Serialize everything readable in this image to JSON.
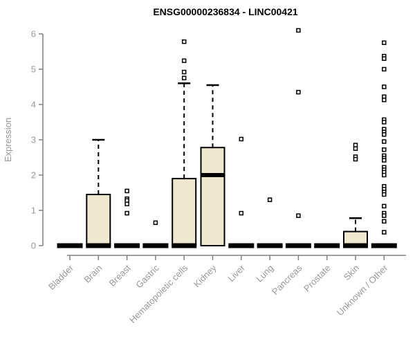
{
  "chart_data": {
    "type": "boxplot",
    "title": "ENSG00000236834 - LINC00421",
    "xlabel": "",
    "ylabel": "Expression",
    "ylim": [
      0,
      6
    ],
    "yticks": [
      0,
      1,
      2,
      3,
      4,
      5,
      6
    ],
    "grid": false,
    "legend": "none",
    "categories": [
      "Bladder",
      "Brain",
      "Breast",
      "Gastric",
      "Hematopoietic cells",
      "Kidney",
      "Liver",
      "Lung",
      "Pancreas",
      "Prostate",
      "Skin",
      "Unknown / Other"
    ],
    "series": [
      {
        "category": "Bladder",
        "q1": 0,
        "median": 0,
        "q3": 0,
        "whisker_low": 0,
        "whisker_high": 0,
        "outliers": []
      },
      {
        "category": "Brain",
        "q1": 0,
        "median": 0,
        "q3": 1.45,
        "whisker_low": 0,
        "whisker_high": 3.0,
        "outliers": []
      },
      {
        "category": "Breast",
        "q1": 0,
        "median": 0,
        "q3": 0,
        "whisker_low": 0,
        "whisker_high": 0,
        "outliers": [
          1.55,
          1.33,
          1.28,
          1.18,
          0.92
        ]
      },
      {
        "category": "Gastric",
        "q1": 0,
        "median": 0,
        "q3": 0,
        "whisker_low": 0,
        "whisker_high": 0,
        "outliers": [
          0.65
        ]
      },
      {
        "category": "Hematopoietic cells",
        "q1": 0,
        "median": 0,
        "q3": 1.9,
        "whisker_low": 0,
        "whisker_high": 4.6,
        "outliers": [
          5.78,
          5.24,
          4.92,
          4.75
        ]
      },
      {
        "category": "Kidney",
        "q1": 0,
        "median": 2.0,
        "q3": 2.78,
        "whisker_low": 0,
        "whisker_high": 4.55,
        "outliers": []
      },
      {
        "category": "Liver",
        "q1": 0,
        "median": 0,
        "q3": 0,
        "whisker_low": 0,
        "whisker_high": 0,
        "outliers": [
          3.02,
          0.92
        ]
      },
      {
        "category": "Lung",
        "q1": 0,
        "median": 0,
        "q3": 0,
        "whisker_low": 0,
        "whisker_high": 0,
        "outliers": [
          1.3
        ]
      },
      {
        "category": "Pancreas",
        "q1": 0,
        "median": 0,
        "q3": 0,
        "whisker_low": 0,
        "whisker_high": 0,
        "outliers": [
          6.1,
          4.35,
          0.85
        ]
      },
      {
        "category": "Prostate",
        "q1": 0,
        "median": 0,
        "q3": 0,
        "whisker_low": 0,
        "whisker_high": 0,
        "outliers": []
      },
      {
        "category": "Skin",
        "q1": 0,
        "median": 0,
        "q3": 0.4,
        "whisker_low": 0,
        "whisker_high": 0.78,
        "outliers": [
          2.85,
          2.75,
          2.52,
          2.45
        ]
      },
      {
        "category": "Unknown / Other",
        "q1": 0,
        "median": 0,
        "q3": 0,
        "whisker_low": 0,
        "whisker_high": 0,
        "outliers": [
          5.75,
          5.37,
          5.3,
          5.0,
          4.5,
          4.22,
          4.13,
          3.57,
          3.5,
          3.3,
          3.22,
          3.15,
          2.95,
          2.72,
          2.55,
          2.48,
          2.42,
          2.22,
          2.15,
          2.08,
          2.0,
          1.68,
          1.6,
          1.52,
          1.45,
          1.12,
          0.92,
          0.85,
          0.69,
          0.38
        ]
      }
    ],
    "colors": {
      "box_fill": "#EDE8CF",
      "box_stroke": "#000000",
      "median": "#000000",
      "whisker": "#000000",
      "outlier_stroke": "#000000",
      "outlier_fill": "#FFFFFF",
      "axis_line": "#808080",
      "tick_label": "#999999",
      "axis_label": "#999999",
      "title": "#000000",
      "background": "#FFFFFF"
    }
  }
}
